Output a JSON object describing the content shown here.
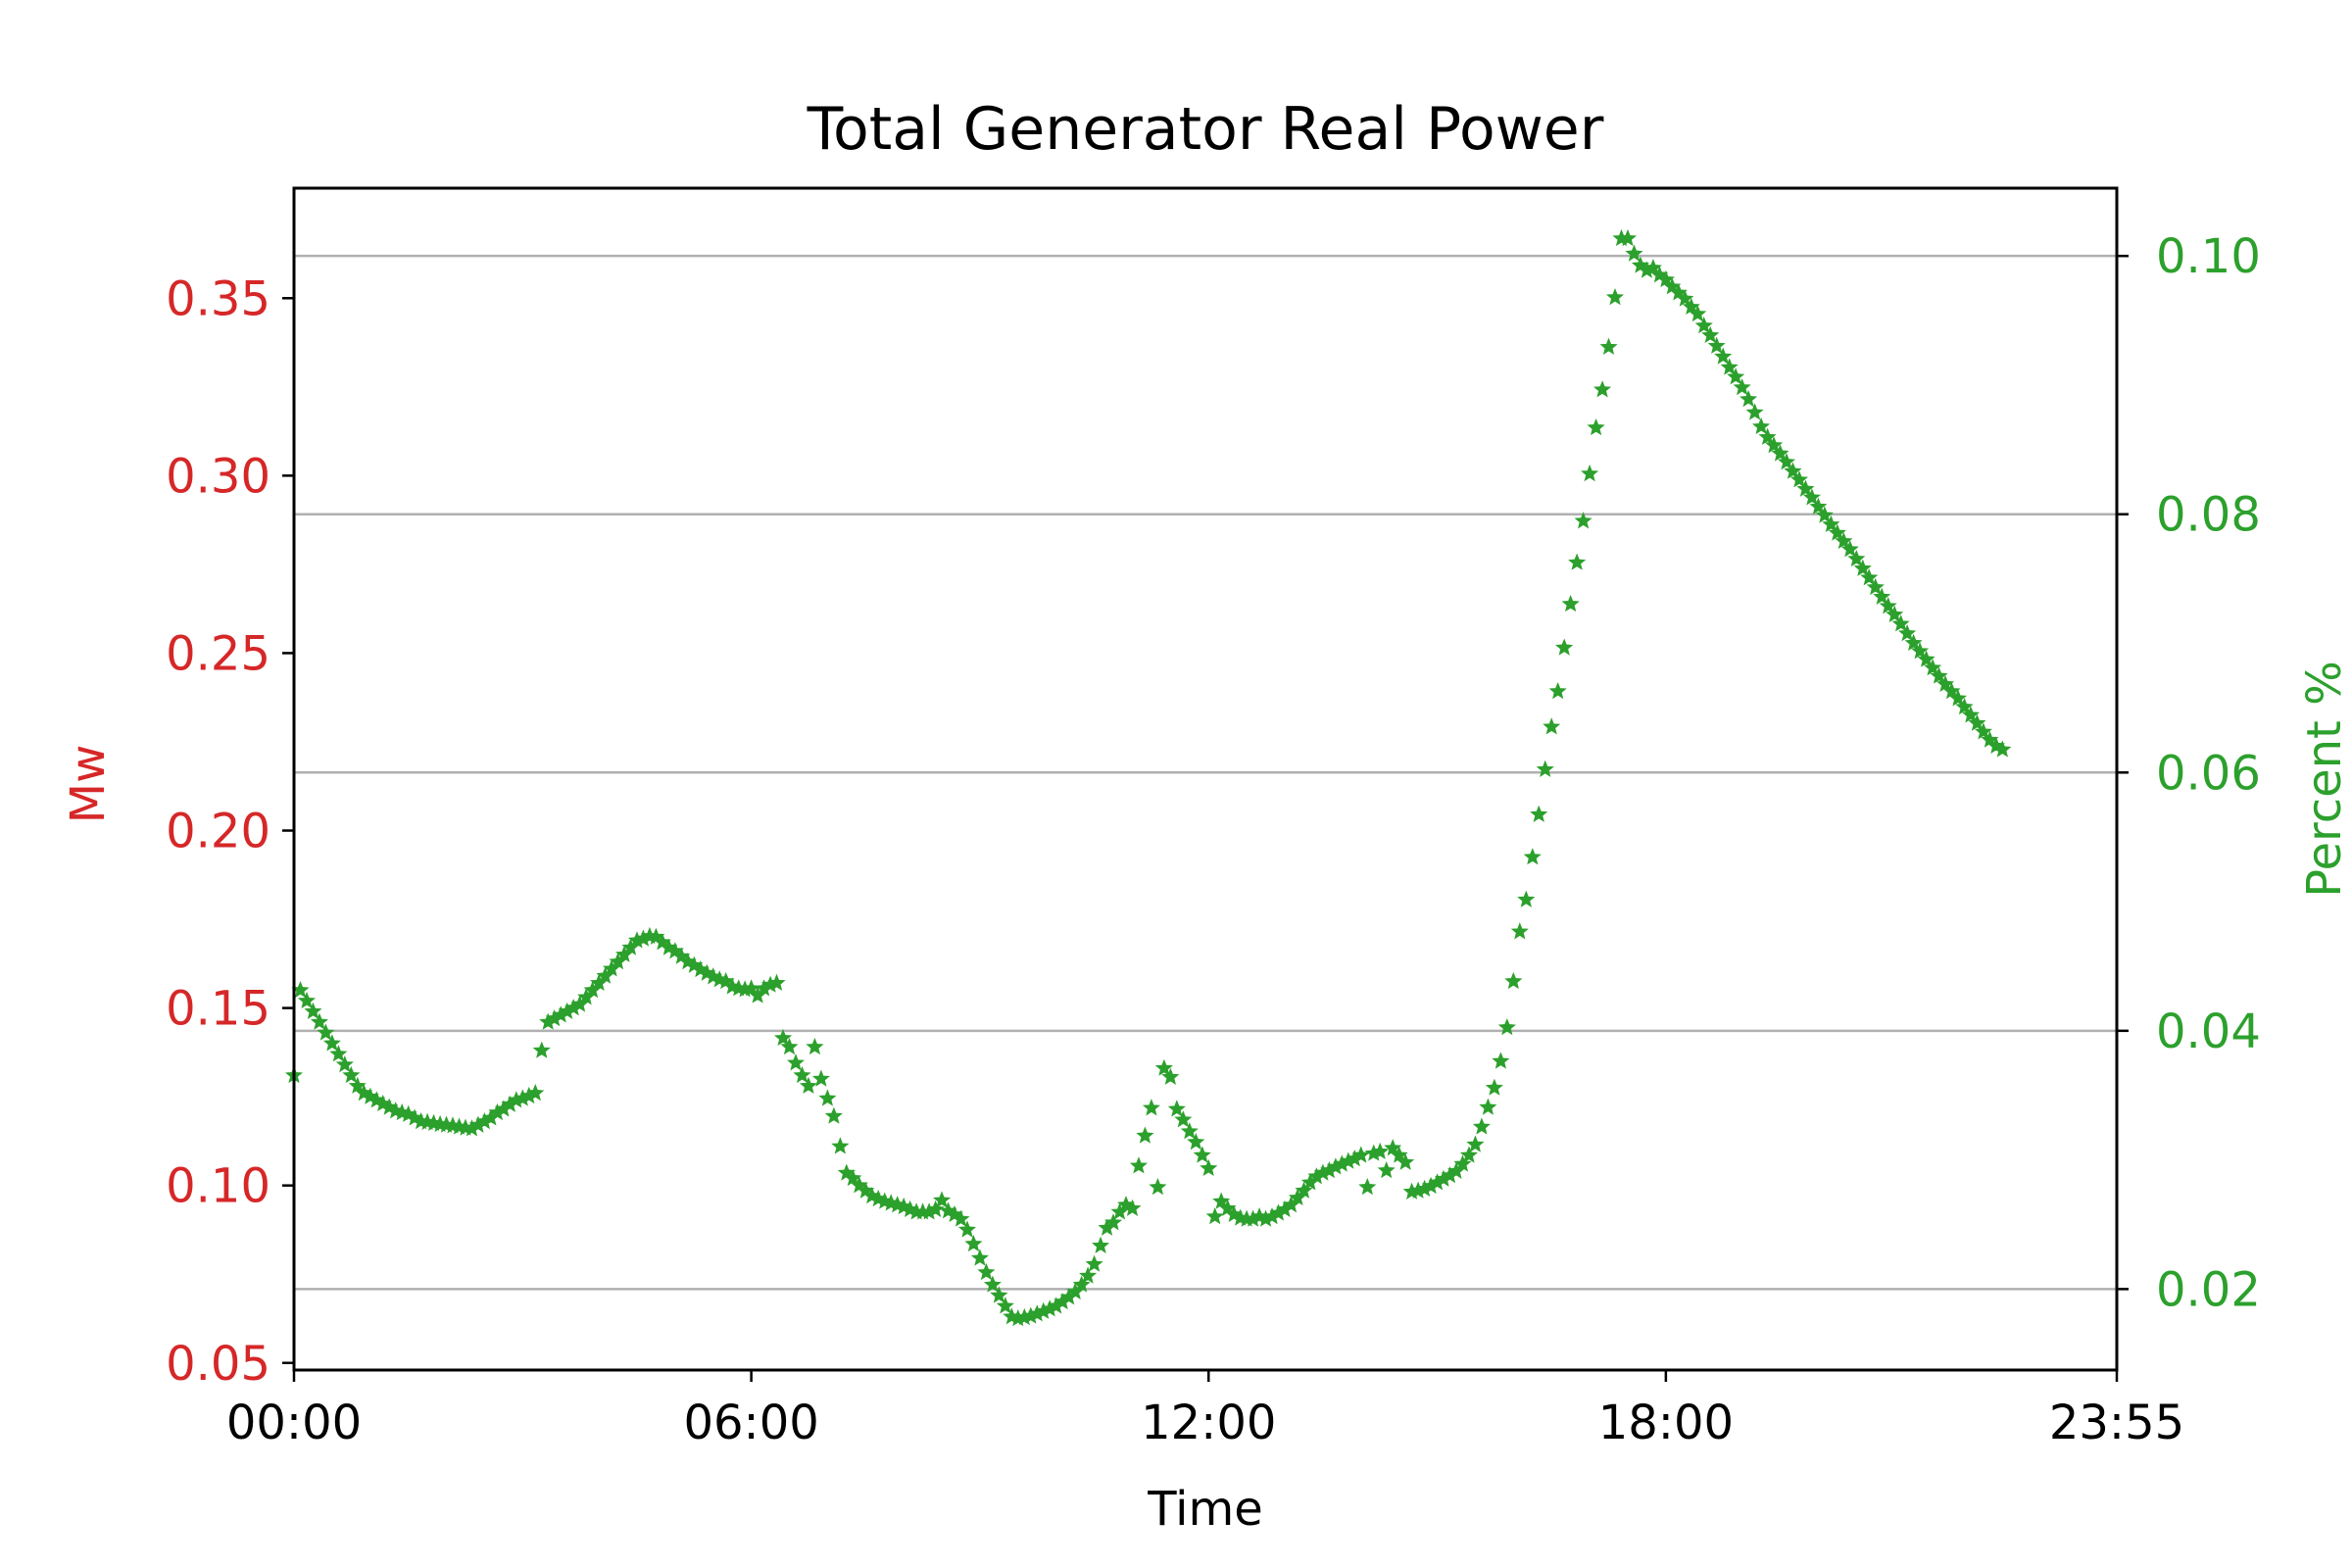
{
  "chart_data": {
    "type": "scatter",
    "title": "Total Generator Real Power",
    "xlabel": "Time",
    "ylabel_left": "Mw",
    "ylabel_right": "Percent %",
    "x_unit": "minutes since 00:00",
    "xlim": [
      0,
      1435
    ],
    "ylim_left": [
      0.048,
      0.381
    ],
    "ylim_right": [
      0.01373,
      0.10525
    ],
    "x_ticks": [
      {
        "value": 0,
        "label": "00:00"
      },
      {
        "value": 360,
        "label": "06:00"
      },
      {
        "value": 720,
        "label": "12:00"
      },
      {
        "value": 1080,
        "label": "18:00"
      },
      {
        "value": 1435,
        "label": "23:55"
      }
    ],
    "y_ticks_left": [
      {
        "value": 0.05,
        "label": "0.05"
      },
      {
        "value": 0.1,
        "label": "0.10"
      },
      {
        "value": 0.15,
        "label": "0.15"
      },
      {
        "value": 0.2,
        "label": "0.20"
      },
      {
        "value": 0.25,
        "label": "0.25"
      },
      {
        "value": 0.3,
        "label": "0.30"
      },
      {
        "value": 0.35,
        "label": "0.35"
      }
    ],
    "y_ticks_right": [
      {
        "value": 0.02,
        "label": "0.02"
      },
      {
        "value": 0.04,
        "label": "0.04"
      },
      {
        "value": 0.06,
        "label": "0.06"
      },
      {
        "value": 0.08,
        "label": "0.08"
      },
      {
        "value": 0.1,
        "label": "0.10"
      }
    ],
    "grid": "horizontal at right-axis ticks",
    "colors": {
      "left_axis": "#d62728",
      "right_axis": "#2ca02c",
      "series": "#2ca02c",
      "grid": "#b0b0b0"
    },
    "series": [
      {
        "name": "Total Generator Real Power",
        "axis": "left",
        "marker": "star",
        "sample_interval_min": 5,
        "points": [
          [
            0,
            0.131
          ],
          [
            5,
            0.155
          ],
          [
            10,
            0.152
          ],
          [
            15,
            0.149
          ],
          [
            20,
            0.146
          ],
          [
            25,
            0.143
          ],
          [
            30,
            0.14
          ],
          [
            35,
            0.137
          ],
          [
            40,
            0.134
          ],
          [
            45,
            0.131
          ],
          [
            50,
            0.128
          ],
          [
            55,
            0.126
          ],
          [
            60,
            0.125
          ],
          [
            65,
            0.124
          ],
          [
            70,
            0.123
          ],
          [
            75,
            0.122
          ],
          [
            80,
            0.121
          ],
          [
            85,
            0.1205
          ],
          [
            90,
            0.12
          ],
          [
            95,
            0.119
          ],
          [
            100,
            0.118
          ],
          [
            105,
            0.1178
          ],
          [
            110,
            0.1175
          ],
          [
            115,
            0.1172
          ],
          [
            120,
            0.117
          ],
          [
            125,
            0.1168
          ],
          [
            130,
            0.1165
          ],
          [
            135,
            0.1162
          ],
          [
            140,
            0.116
          ],
          [
            145,
            0.117
          ],
          [
            150,
            0.118
          ],
          [
            155,
            0.119
          ],
          [
            160,
            0.1205
          ],
          [
            165,
            0.1215
          ],
          [
            170,
            0.1228
          ],
          [
            175,
            0.124
          ],
          [
            180,
            0.1245
          ],
          [
            185,
            0.1252
          ],
          [
            190,
            0.126
          ],
          [
            195,
            0.138
          ],
          [
            200,
            0.146
          ],
          [
            205,
            0.147
          ],
          [
            210,
            0.148
          ],
          [
            215,
            0.149
          ],
          [
            220,
            0.15
          ],
          [
            225,
            0.151
          ],
          [
            230,
            0.153
          ],
          [
            235,
            0.155
          ],
          [
            240,
            0.157
          ],
          [
            245,
            0.159
          ],
          [
            250,
            0.161
          ],
          [
            255,
            0.163
          ],
          [
            260,
            0.165
          ],
          [
            265,
            0.167
          ],
          [
            270,
            0.169
          ],
          [
            275,
            0.1695
          ],
          [
            280,
            0.1702
          ],
          [
            285,
            0.17
          ],
          [
            290,
            0.1685
          ],
          [
            295,
            0.167
          ],
          [
            300,
            0.166
          ],
          [
            305,
            0.1645
          ],
          [
            310,
            0.163
          ],
          [
            315,
            0.162
          ],
          [
            320,
            0.1608
          ],
          [
            325,
            0.1598
          ],
          [
            330,
            0.1588
          ],
          [
            335,
            0.158
          ],
          [
            340,
            0.1575
          ],
          [
            345,
            0.156
          ],
          [
            350,
            0.1555
          ],
          [
            355,
            0.1552
          ],
          [
            360,
            0.1555
          ],
          [
            365,
            0.1535
          ],
          [
            370,
            0.1555
          ],
          [
            375,
            0.1565
          ],
          [
            380,
            0.157
          ],
          [
            385,
            0.1415
          ],
          [
            390,
            0.139
          ],
          [
            395,
            0.1345
          ],
          [
            400,
            0.131
          ],
          [
            405,
            0.128
          ],
          [
            410,
            0.139
          ],
          [
            415,
            0.13
          ],
          [
            420,
            0.1245
          ],
          [
            425,
            0.1195
          ],
          [
            430,
            0.111
          ],
          [
            435,
            0.1035
          ],
          [
            440,
            0.102
          ],
          [
            445,
            0.1
          ],
          [
            450,
            0.0985
          ],
          [
            455,
            0.097
          ],
          [
            460,
            0.0962
          ],
          [
            465,
            0.0955
          ],
          [
            470,
            0.095
          ],
          [
            475,
            0.0945
          ],
          [
            480,
            0.094
          ],
          [
            485,
            0.0932
          ],
          [
            490,
            0.0925
          ],
          [
            495,
            0.0925
          ],
          [
            500,
            0.0925
          ],
          [
            505,
            0.0932
          ],
          [
            510,
            0.0958
          ],
          [
            515,
            0.0928
          ],
          [
            520,
            0.0918
          ],
          [
            525,
            0.0905
          ],
          [
            530,
            0.0875
          ],
          [
            535,
            0.0835
          ],
          [
            540,
            0.0795
          ],
          [
            545,
            0.0755
          ],
          [
            550,
            0.072
          ],
          [
            555,
            0.069
          ],
          [
            560,
            0.066
          ],
          [
            565,
            0.063
          ],
          [
            570,
            0.0625
          ],
          [
            575,
            0.0628
          ],
          [
            580,
            0.0632
          ],
          [
            585,
            0.0638
          ],
          [
            590,
            0.0645
          ],
          [
            595,
            0.0652
          ],
          [
            600,
            0.066
          ],
          [
            605,
            0.0672
          ],
          [
            610,
            0.0685
          ],
          [
            615,
            0.07
          ],
          [
            620,
            0.072
          ],
          [
            625,
            0.0745
          ],
          [
            630,
            0.0778
          ],
          [
            635,
            0.083
          ],
          [
            640,
            0.088
          ],
          [
            645,
            0.0895
          ],
          [
            650,
            0.0925
          ],
          [
            655,
            0.0945
          ],
          [
            660,
            0.0935
          ],
          [
            665,
            0.1055
          ],
          [
            670,
            0.114
          ],
          [
            675,
            0.1218
          ],
          [
            680,
            0.0995
          ],
          [
            685,
            0.133
          ],
          [
            690,
            0.1305
          ],
          [
            695,
            0.1215
          ],
          [
            700,
            0.1185
          ],
          [
            705,
            0.1152
          ],
          [
            710,
            0.1122
          ],
          [
            715,
            0.1085
          ],
          [
            720,
            0.1048
          ],
          [
            725,
            0.0912
          ],
          [
            730,
            0.0955
          ],
          [
            735,
            0.0935
          ],
          [
            740,
            0.0918
          ],
          [
            745,
            0.0908
          ],
          [
            750,
            0.0905
          ],
          [
            755,
            0.0905
          ],
          [
            760,
            0.0912
          ],
          [
            765,
            0.0905
          ],
          [
            770,
            0.0912
          ],
          [
            775,
            0.0922
          ],
          [
            780,
            0.0932
          ],
          [
            785,
            0.0945
          ],
          [
            790,
            0.0965
          ],
          [
            795,
            0.0985
          ],
          [
            800,
            0.1008
          ],
          [
            805,
            0.1025
          ],
          [
            810,
            0.1035
          ],
          [
            815,
            0.1042
          ],
          [
            820,
            0.1052
          ],
          [
            825,
            0.106
          ],
          [
            830,
            0.1068
          ],
          [
            835,
            0.1075
          ],
          [
            840,
            0.1085
          ],
          [
            845,
            0.0995
          ],
          [
            850,
            0.109
          ],
          [
            855,
            0.1095
          ],
          [
            860,
            0.1042
          ],
          [
            865,
            0.1105
          ],
          [
            870,
            0.1085
          ],
          [
            875,
            0.1065
          ],
          [
            880,
            0.0982
          ],
          [
            885,
            0.0985
          ],
          [
            890,
            0.099
          ],
          [
            895,
            0.0998
          ],
          [
            900,
            0.1008
          ],
          [
            905,
            0.1018
          ],
          [
            910,
            0.1028
          ],
          [
            915,
            0.104
          ],
          [
            920,
            0.106
          ],
          [
            925,
            0.1085
          ],
          [
            930,
            0.1115
          ],
          [
            935,
            0.1165
          ],
          [
            940,
            0.122
          ],
          [
            945,
            0.1275
          ],
          [
            950,
            0.135
          ],
          [
            955,
            0.1445
          ],
          [
            960,
            0.1575
          ],
          [
            965,
            0.1715
          ],
          [
            970,
            0.1805
          ],
          [
            975,
            0.1925
          ],
          [
            980,
            0.2045
          ],
          [
            985,
            0.2172
          ],
          [
            990,
            0.2292
          ],
          [
            995,
            0.2392
          ],
          [
            1000,
            0.2515
          ],
          [
            1005,
            0.2638
          ],
          [
            1010,
            0.2755
          ],
          [
            1015,
            0.2872
          ],
          [
            1020,
            0.3005
          ],
          [
            1025,
            0.3135
          ],
          [
            1030,
            0.3242
          ],
          [
            1035,
            0.3362
          ],
          [
            1040,
            0.3502
          ],
          [
            1045,
            0.3668
          ],
          [
            1050,
            0.3668
          ],
          [
            1055,
            0.3625
          ],
          [
            1060,
            0.3592
          ],
          [
            1065,
            0.3578
          ],
          [
            1070,
            0.3585
          ],
          [
            1075,
            0.3565
          ],
          [
            1080,
            0.3552
          ],
          [
            1085,
            0.3532
          ],
          [
            1090,
            0.3515
          ],
          [
            1095,
            0.3498
          ],
          [
            1100,
            0.3475
          ],
          [
            1105,
            0.3455
          ],
          [
            1110,
            0.3422
          ],
          [
            1115,
            0.3395
          ],
          [
            1120,
            0.3365
          ],
          [
            1125,
            0.3335
          ],
          [
            1130,
            0.3305
          ],
          [
            1135,
            0.3278
          ],
          [
            1140,
            0.3248
          ],
          [
            1145,
            0.3215
          ],
          [
            1150,
            0.3178
          ],
          [
            1155,
            0.3138
          ],
          [
            1160,
            0.3108
          ],
          [
            1165,
            0.3085
          ],
          [
            1170,
            0.3062
          ],
          [
            1175,
            0.3038
          ],
          [
            1180,
            0.3012
          ],
          [
            1185,
            0.2988
          ],
          [
            1190,
            0.2962
          ],
          [
            1195,
            0.2938
          ],
          [
            1200,
            0.2912
          ],
          [
            1205,
            0.2888
          ],
          [
            1210,
            0.2862
          ],
          [
            1215,
            0.2838
          ],
          [
            1220,
            0.2815
          ],
          [
            1225,
            0.2792
          ],
          [
            1230,
            0.2765
          ],
          [
            1235,
            0.2738
          ],
          [
            1240,
            0.2712
          ],
          [
            1245,
            0.2685
          ],
          [
            1250,
            0.2658
          ],
          [
            1255,
            0.2632
          ],
          [
            1260,
            0.2608
          ],
          [
            1265,
            0.2582
          ],
          [
            1270,
            0.2555
          ],
          [
            1275,
            0.2528
          ],
          [
            1280,
            0.2505
          ],
          [
            1285,
            0.2482
          ],
          [
            1290,
            0.2458
          ],
          [
            1295,
            0.2435
          ],
          [
            1300,
            0.2412
          ],
          [
            1305,
            0.2392
          ],
          [
            1310,
            0.2372
          ],
          [
            1315,
            0.2348
          ],
          [
            1320,
            0.2325
          ],
          [
            1325,
            0.2302
          ],
          [
            1330,
            0.2278
          ],
          [
            1335,
            0.2255
          ],
          [
            1340,
            0.2238
          ],
          [
            1345,
            0.2228
          ]
        ]
      }
    ]
  }
}
